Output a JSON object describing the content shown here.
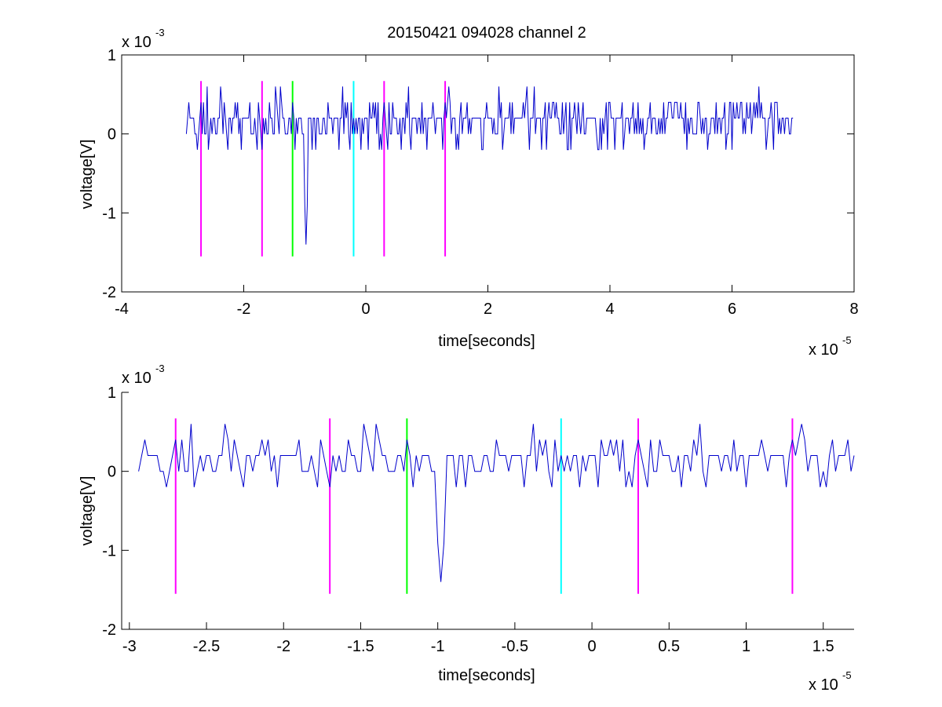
{
  "figure": {
    "title": "20150421 094028 channel 2"
  },
  "colors": {
    "signal": "#0000cc",
    "magenta": "#ff00ff",
    "green": "#00ff00",
    "cyan": "#00ffff",
    "axes": "#000000"
  },
  "chart_data": [
    {
      "type": "line",
      "title": "20150421 094028 channel 2",
      "xlabel": "time[seconds]",
      "ylabel": "voltage[V]",
      "x_multiplier": "x 10",
      "x_exponent": "-5",
      "y_multiplier": "x 10",
      "y_exponent": "-3",
      "xlim": [
        -4,
        8
      ],
      "ylim": [
        -2,
        1
      ],
      "x_ticks": [
        "-4",
        "-2",
        "0",
        "2",
        "4",
        "6",
        "8"
      ],
      "y_ticks": [
        "1",
        "0",
        "-1",
        "-2"
      ],
      "grid": false,
      "signal": {
        "x_range": [
          -2.94,
          7.0
        ],
        "baseline": 0.0,
        "levels": [
          -0.2,
          0.0,
          0.2,
          0.4
        ],
        "noise_peak": 0.6,
        "spike": {
          "x": -0.98,
          "y": -1.4
        }
      },
      "markers": [
        {
          "x": -2.7,
          "color": "magenta",
          "ymin": -1.55,
          "ymax": 0.67
        },
        {
          "x": -1.7,
          "color": "magenta",
          "ymin": -1.55,
          "ymax": 0.67
        },
        {
          "x": -1.2,
          "color": "green",
          "ymin": -1.55,
          "ymax": 0.67
        },
        {
          "x": -0.2,
          "color": "cyan",
          "ymin": -1.55,
          "ymax": 0.67
        },
        {
          "x": 0.3,
          "color": "magenta",
          "ymin": -1.55,
          "ymax": 0.67
        },
        {
          "x": 1.3,
          "color": "magenta",
          "ymin": -1.55,
          "ymax": 0.67
        }
      ]
    },
    {
      "type": "line",
      "xlabel": "time[seconds]",
      "ylabel": "voltage[V]",
      "x_multiplier": "x 10",
      "x_exponent": "-5",
      "y_multiplier": "x 10",
      "y_exponent": "-3",
      "xlim": [
        -3.05,
        1.7
      ],
      "ylim": [
        -2,
        1
      ],
      "x_ticks": [
        "-3",
        "-2.5",
        "-2",
        "-1.5",
        "-1",
        "-0.5",
        "0",
        "0.5",
        "1",
        "1.5"
      ],
      "x_tick_values": [
        -3,
        -2.5,
        -2,
        -1.5,
        -1,
        -0.5,
        0,
        0.5,
        1,
        1.5
      ],
      "y_ticks": [
        "1",
        "0",
        "-1",
        "-2"
      ],
      "grid": false,
      "signal": {
        "x_range": [
          -2.94,
          1.7
        ],
        "baseline": 0.0,
        "levels": [
          -0.2,
          0.0,
          0.2,
          0.4
        ],
        "noise_peak": 0.6,
        "spike": {
          "x": -0.98,
          "y": -1.4
        }
      },
      "markers": [
        {
          "x": -2.7,
          "color": "magenta",
          "ymin": -1.55,
          "ymax": 0.67
        },
        {
          "x": -1.7,
          "color": "magenta",
          "ymin": -1.55,
          "ymax": 0.67
        },
        {
          "x": -1.2,
          "color": "green",
          "ymin": -1.55,
          "ymax": 0.67
        },
        {
          "x": -0.2,
          "color": "cyan",
          "ymin": -1.55,
          "ymax": 0.67
        },
        {
          "x": 0.3,
          "color": "magenta",
          "ymin": -1.55,
          "ymax": 0.67
        },
        {
          "x": 1.3,
          "color": "magenta",
          "ymin": -1.55,
          "ymax": 0.67
        }
      ]
    }
  ]
}
